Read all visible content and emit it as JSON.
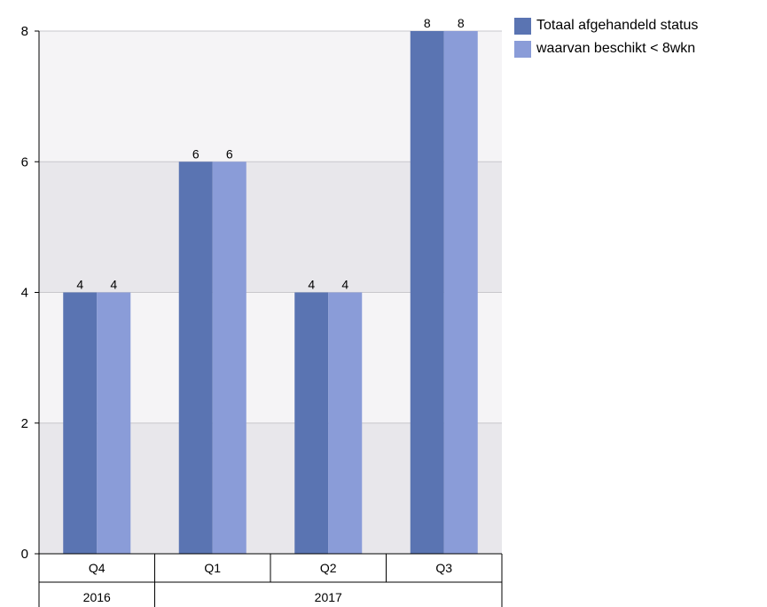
{
  "chart_data": {
    "type": "bar",
    "title": "",
    "xlabel": "",
    "ylabel": "",
    "ylim": [
      0,
      8
    ],
    "yticks": [
      0,
      2,
      4,
      6,
      8
    ],
    "grid": true,
    "legend_position": "top-right",
    "categories": [
      "Q4",
      "Q1",
      "Q2",
      "Q3"
    ],
    "category_groups": [
      {
        "label": "2016",
        "span": 1
      },
      {
        "label": "2017",
        "span": 3
      }
    ],
    "series": [
      {
        "name": "Totaal afgehandeld status",
        "color": "#5a74b2",
        "values": [
          4,
          6,
          4,
          8
        ]
      },
      {
        "name": "waarvan beschikt < 8wkn",
        "color": "#8a9cd8",
        "values": [
          4,
          6,
          4,
          8
        ]
      }
    ],
    "data_labels": true
  }
}
